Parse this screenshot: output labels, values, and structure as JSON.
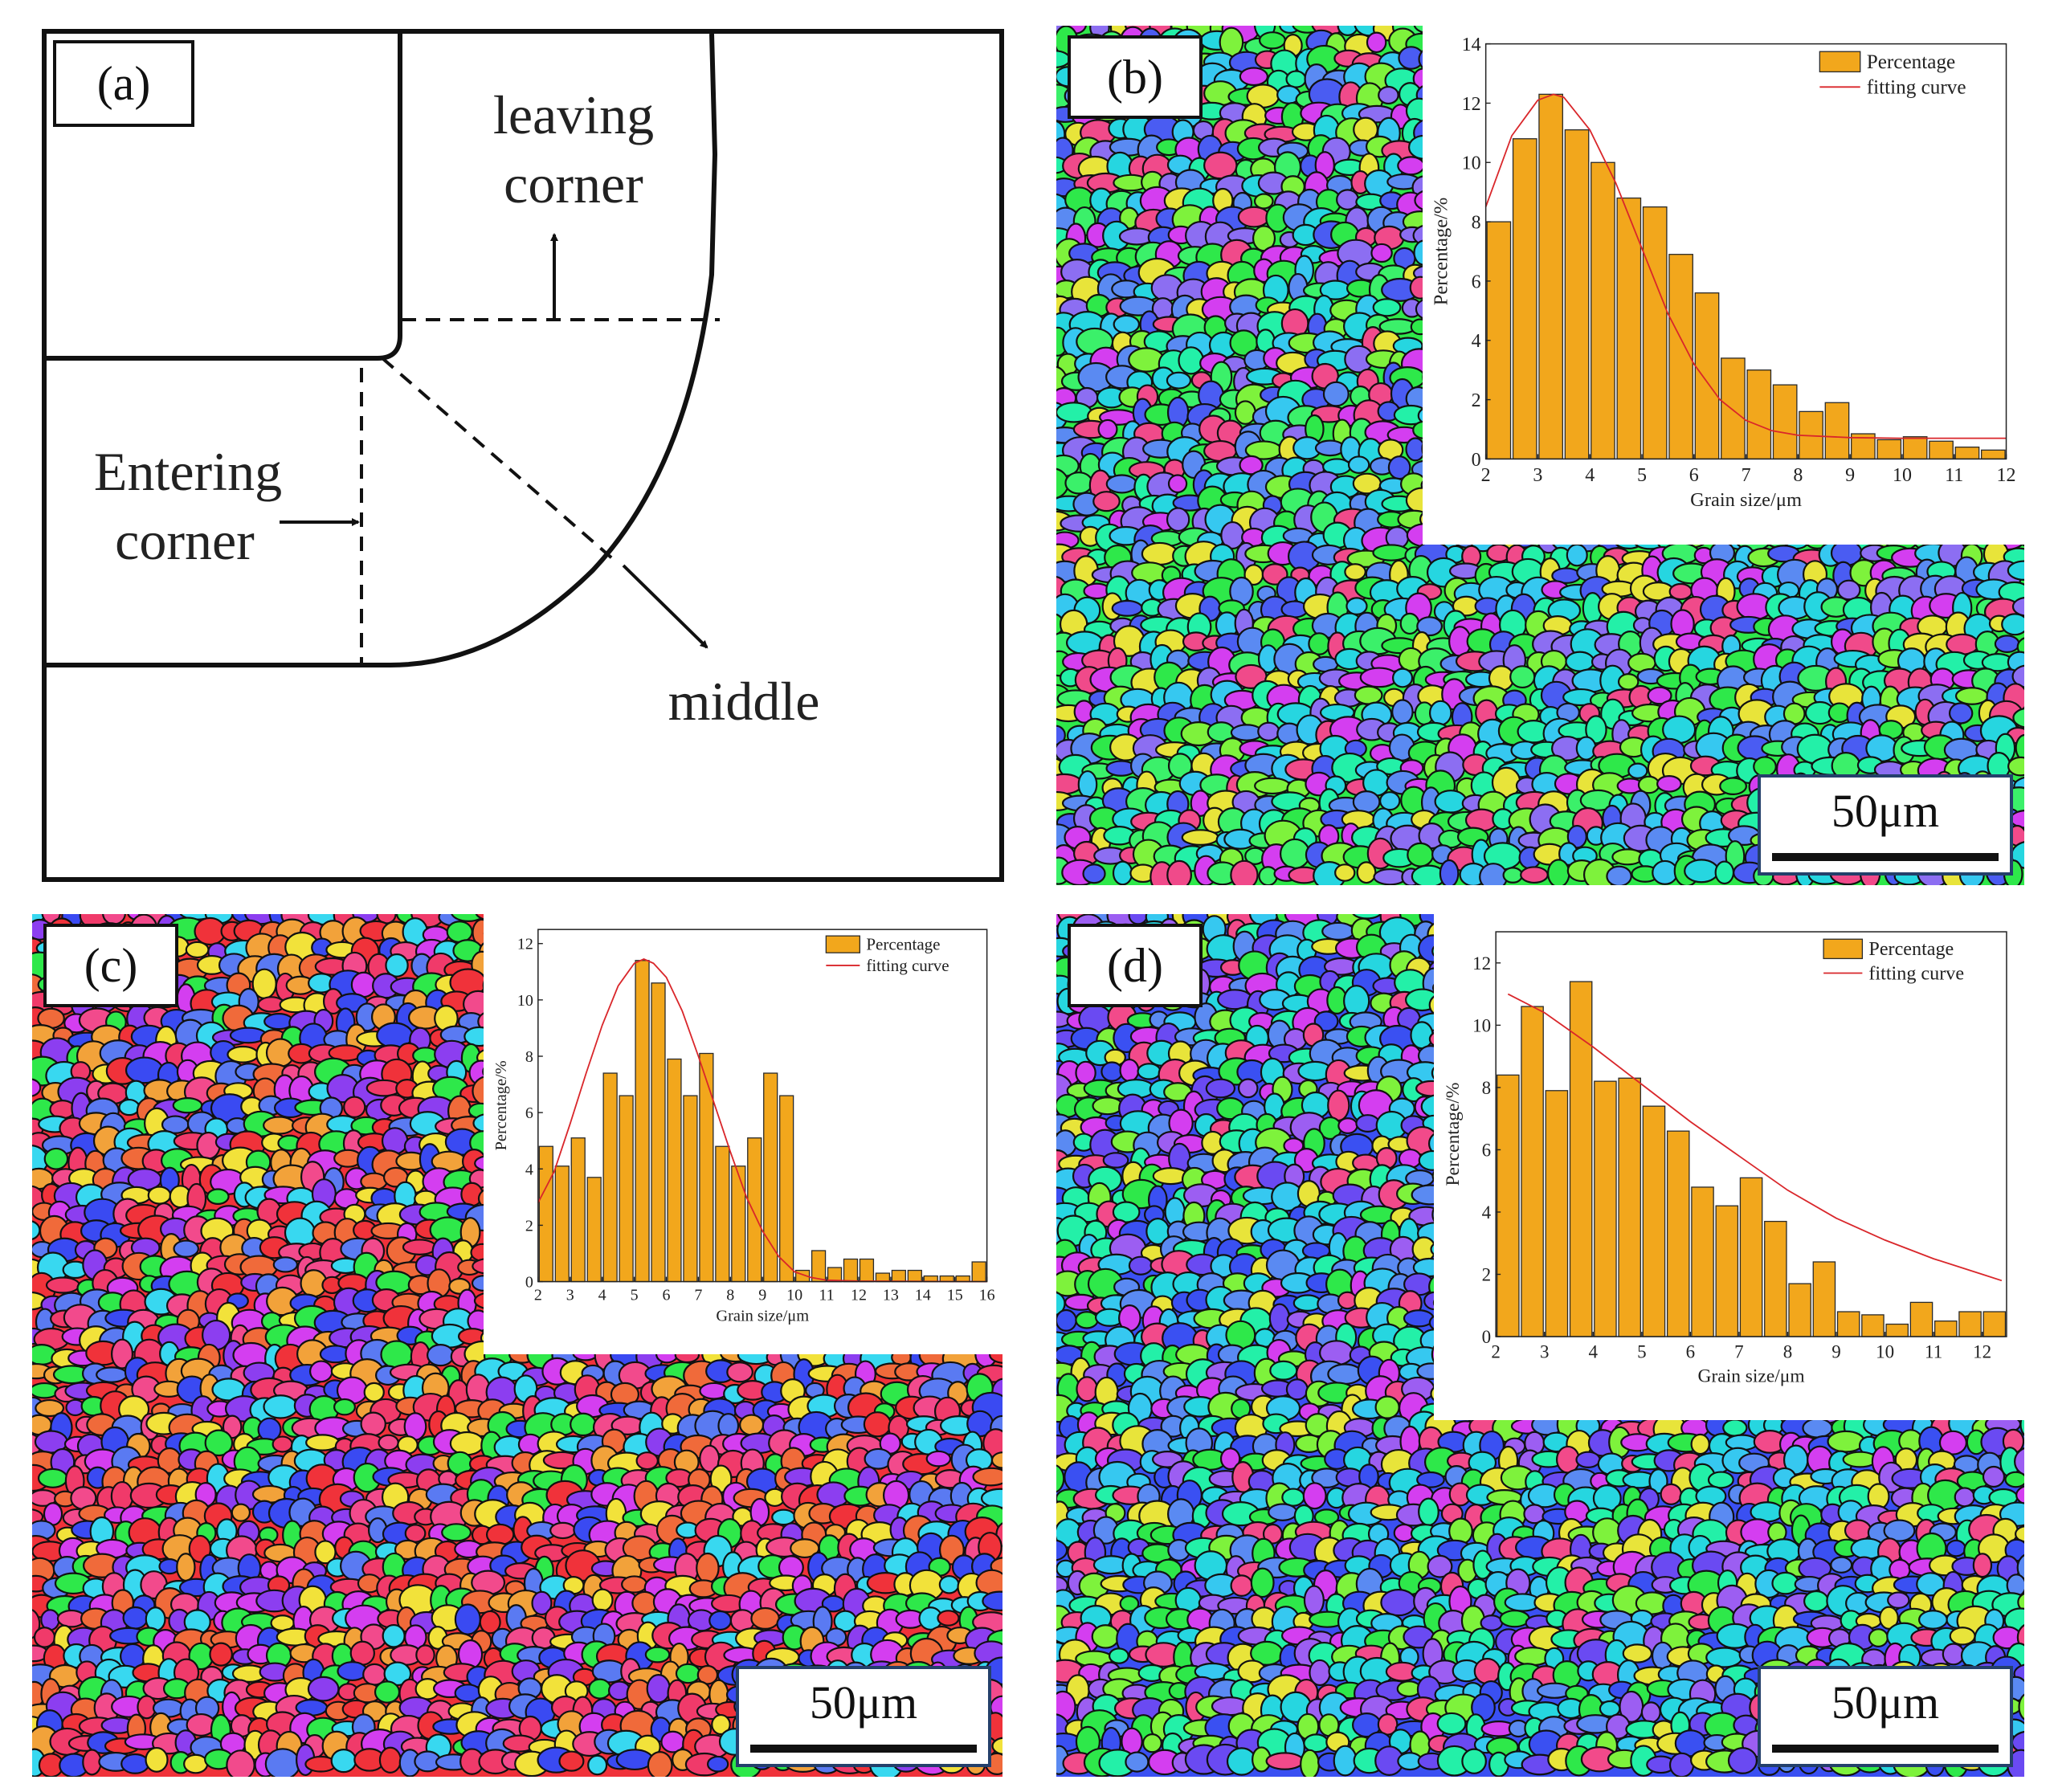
{
  "panel_a": {
    "label": "(a)",
    "leaving_corner": [
      "leaving",
      "corner"
    ],
    "entering_corner": [
      "Entering",
      "corner"
    ],
    "middle": "middle"
  },
  "scale_bar": "50μm",
  "chart_data": [
    {
      "panel": "(b)",
      "type": "bar",
      "title": "",
      "xlabel": "Grain size/μm",
      "ylabel": "Percentage/%",
      "xlim": [
        2,
        12
      ],
      "ylim": [
        0,
        14
      ],
      "xticks": [
        2,
        3,
        4,
        5,
        6,
        7,
        8,
        9,
        10,
        11,
        12
      ],
      "yticks": [
        0,
        2,
        4,
        6,
        8,
        10,
        12,
        14
      ],
      "bin_width": 0.5,
      "x": [
        2.25,
        2.75,
        3.25,
        3.75,
        4.25,
        4.75,
        5.25,
        5.75,
        6.25,
        6.75,
        7.25,
        7.75,
        8.25,
        8.75,
        9.25,
        9.75,
        10.25,
        10.75,
        11.25,
        11.75
      ],
      "values": [
        8.0,
        10.8,
        12.3,
        11.1,
        10.0,
        8.8,
        8.5,
        6.9,
        5.6,
        3.4,
        3.0,
        2.5,
        1.6,
        1.9,
        0.85,
        0.65,
        0.75,
        0.6,
        0.4,
        0.3
      ],
      "legend": [
        "Percentage",
        "fitting curve"
      ],
      "legend_position": "top-right",
      "fit": {
        "x": [
          2,
          2.5,
          3,
          3.3,
          3.5,
          4,
          4.5,
          5,
          5.5,
          6,
          6.5,
          7,
          7.5,
          8,
          9,
          10,
          11,
          12
        ],
        "y": [
          8.5,
          10.9,
          12.1,
          12.3,
          12.2,
          11.1,
          9.3,
          7.1,
          4.9,
          3.2,
          2.0,
          1.3,
          0.95,
          0.8,
          0.72,
          0.7,
          0.7,
          0.7
        ]
      }
    },
    {
      "panel": "(c)",
      "type": "bar",
      "title": "",
      "xlabel": "Grain size/μm",
      "ylabel": "Percentage/%",
      "xlim": [
        2,
        16
      ],
      "ylim": [
        0,
        12.5
      ],
      "xticks": [
        2,
        3,
        4,
        5,
        6,
        7,
        8,
        9,
        10,
        11,
        12,
        13,
        14,
        15,
        16
      ],
      "yticks": [
        0,
        2,
        4,
        6,
        8,
        10,
        12
      ],
      "bin_width": 0.5,
      "x": [
        2.25,
        2.75,
        3.25,
        3.75,
        4.25,
        4.75,
        5.25,
        5.75,
        6.25,
        6.75,
        7.25,
        7.75,
        8.25,
        8.75,
        9.25,
        9.75,
        10.25,
        10.75,
        11.25,
        11.75,
        12.25,
        12.75,
        13.25,
        13.75,
        14.25,
        14.75,
        15.25,
        15.75
      ],
      "values": [
        4.8,
        4.1,
        5.1,
        3.7,
        7.4,
        6.6,
        11.4,
        10.6,
        7.9,
        6.6,
        8.1,
        4.8,
        4.1,
        5.1,
        7.4,
        6.6,
        0.4,
        1.1,
        0.5,
        0.8,
        0.8,
        0.3,
        0.4,
        0.4,
        0.2,
        0.2,
        0.2,
        0.7
      ],
      "legend": [
        "Percentage",
        "fitting curve"
      ],
      "legend_position": "top-right",
      "fit": {
        "x": [
          2,
          2.5,
          3,
          3.5,
          4,
          4.5,
          5,
          5.3,
          5.6,
          6,
          6.5,
          7,
          7.5,
          8,
          8.5,
          9,
          9.5,
          10,
          10.5,
          11,
          12,
          16
        ],
        "y": [
          2.8,
          3.9,
          5.6,
          7.4,
          9.1,
          10.5,
          11.3,
          11.45,
          11.3,
          10.8,
          9.6,
          8.0,
          6.3,
          4.6,
          3.0,
          1.8,
          0.9,
          0.35,
          0.15,
          0.05,
          0.02,
          0.0
        ]
      }
    },
    {
      "panel": "(d)",
      "type": "bar",
      "title": "",
      "xlabel": "Grain size/μm",
      "ylabel": "Percentage/%",
      "xlim": [
        2,
        12.5
      ],
      "ylim": [
        0,
        13
      ],
      "xticks": [
        2,
        3,
        4,
        5,
        6,
        7,
        8,
        9,
        10,
        11,
        12
      ],
      "yticks": [
        0,
        2,
        4,
        6,
        8,
        10,
        12
      ],
      "bin_width": 0.5,
      "x": [
        2.25,
        2.75,
        3.25,
        3.75,
        4.25,
        4.75,
        5.25,
        5.75,
        6.25,
        6.75,
        7.25,
        7.75,
        8.25,
        8.75,
        9.25,
        9.75,
        10.25,
        10.75,
        11.25,
        11.75,
        12.25
      ],
      "values": [
        8.4,
        10.6,
        7.9,
        11.4,
        8.2,
        8.3,
        7.4,
        6.6,
        4.8,
        4.2,
        5.1,
        3.7,
        1.7,
        2.4,
        0.8,
        0.7,
        0.4,
        1.1,
        0.5,
        0.8,
        0.8
      ],
      "legend": [
        "Percentage",
        "fitting curve"
      ],
      "legend_position": "top-right",
      "fit": {
        "x": [
          2.25,
          3,
          4,
          5,
          6,
          7,
          8,
          9,
          10,
          11,
          12,
          12.4
        ],
        "y": [
          11.0,
          10.4,
          9.3,
          8.1,
          6.9,
          5.8,
          4.7,
          3.8,
          3.1,
          2.5,
          2.0,
          1.8
        ]
      }
    }
  ]
}
